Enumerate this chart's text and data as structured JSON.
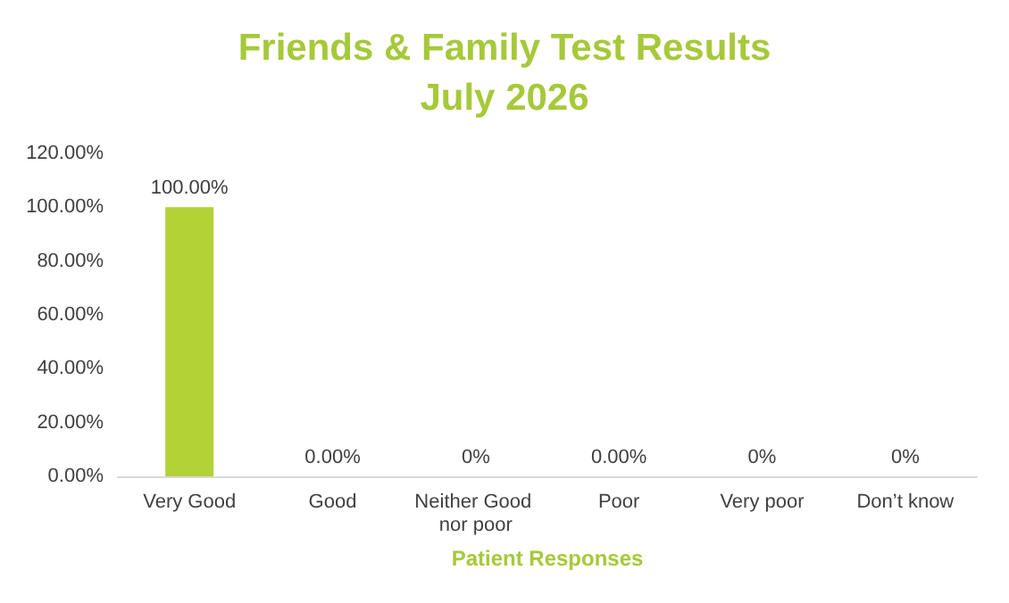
{
  "chart_data": {
    "type": "bar",
    "title": "Friends & Family Test Results\nJuly 2026",
    "categories": [
      "Very Good",
      "Good",
      "Neither Good nor poor",
      "Poor",
      "Very poor",
      "Don’t know"
    ],
    "values": [
      100,
      0,
      0,
      0,
      0,
      0
    ],
    "value_labels": [
      "100.00%",
      "0.00%",
      "0%",
      "0.00%",
      "0%",
      "0%"
    ],
    "color": "#b2d235",
    "xlabel": "Patient Responses",
    "ylim": [
      0,
      120
    ],
    "yticks": [
      {
        "value": 0,
        "label": "0.00%"
      },
      {
        "value": 20,
        "label": "20.00%"
      },
      {
        "value": 40,
        "label": "40.00%"
      },
      {
        "value": 60,
        "label": "60.00%"
      },
      {
        "value": 80,
        "label": "80.00%"
      },
      {
        "value": 100,
        "label": "100.00%"
      },
      {
        "value": 120,
        "label": "120.00%"
      }
    ],
    "grid": false
  }
}
